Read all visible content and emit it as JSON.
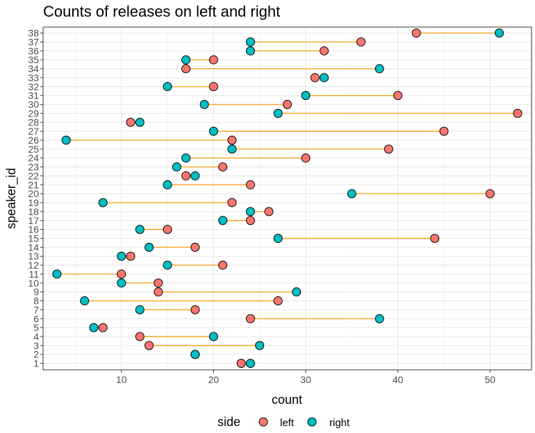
{
  "chart_data": {
    "type": "dumbbell",
    "title": "Counts of releases on left and right",
    "xlabel": "count",
    "ylabel": "speaker_id",
    "xlim": [
      1.5,
      54.5
    ],
    "x_ticks": [
      10,
      20,
      30,
      40,
      50
    ],
    "grid": true,
    "legend": {
      "title": "side",
      "position": "bottom",
      "entries": [
        {
          "name": "left",
          "color": "#F8766D"
        },
        {
          "name": "right",
          "color": "#00BFC4"
        }
      ]
    },
    "connector_color": "#F5A623",
    "categories": [
      "1",
      "2",
      "3",
      "4",
      "5",
      "6",
      "7",
      "8",
      "9",
      "10",
      "11",
      "12",
      "13",
      "14",
      "15",
      "16",
      "17",
      "18",
      "19",
      "20",
      "21",
      "22",
      "23",
      "24",
      "25",
      "26",
      "27",
      "28",
      "29",
      "30",
      "31",
      "32",
      "33",
      "34",
      "35",
      "36",
      "37",
      "38"
    ],
    "series": [
      {
        "name": "left",
        "values": [
          23,
          18,
          13,
          12,
          8,
          24,
          18,
          27,
          14,
          14,
          10,
          21,
          11,
          18,
          44,
          15,
          24,
          26,
          22,
          50,
          24,
          17,
          21,
          30,
          39,
          22,
          45,
          11,
          53,
          28,
          40,
          20,
          31,
          17,
          20,
          32,
          36,
          42
        ]
      },
      {
        "name": "right",
        "values": [
          24,
          18,
          25,
          20,
          7,
          38,
          12,
          6,
          29,
          10,
          3,
          15,
          10,
          13,
          27,
          12,
          21,
          24,
          8,
          35,
          15,
          18,
          16,
          17,
          22,
          4,
          20,
          12,
          27,
          19,
          30,
          15,
          32,
          38,
          17,
          24,
          24,
          51
        ]
      }
    ]
  }
}
